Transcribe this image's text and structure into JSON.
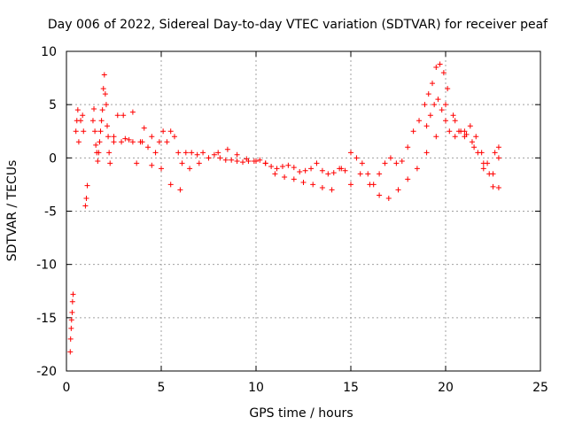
{
  "chart_data": {
    "type": "scatter",
    "title": "Day 006 of 2022, Sidereal Day-to-day VTEC variation (SDTVAR) for receiver peaf",
    "xlabel": "GPS time / hours",
    "ylabel": "SDTVAR / TECUs",
    "xlim": [
      0,
      25
    ],
    "ylim": [
      -20,
      10
    ],
    "xticks": [
      "0",
      "5",
      "10",
      "15",
      "20",
      "25"
    ],
    "yticks": [
      "-20",
      "-15",
      "-10",
      "-5",
      "0",
      "5",
      "10"
    ],
    "grid": true,
    "marker": "+",
    "color": "#ff0000",
    "series": [
      {
        "name": "SDTVAR",
        "x": [
          0.2,
          0.22,
          0.25,
          0.27,
          0.3,
          0.32,
          0.35,
          0.5,
          0.55,
          0.6,
          0.65,
          0.75,
          0.85,
          0.9,
          1.0,
          1.05,
          1.1,
          1.4,
          1.45,
          1.5,
          1.55,
          1.6,
          1.65,
          1.7,
          1.75,
          1.8,
          1.85,
          1.9,
          1.95,
          2.0,
          2.05,
          2.1,
          2.15,
          2.2,
          2.25,
          2.3,
          2.5,
          2.7,
          2.9,
          3.1,
          3.3,
          3.5,
          3.7,
          3.9,
          4.1,
          4.3,
          4.5,
          4.7,
          4.9,
          5.1,
          5.3,
          5.5,
          5.7,
          5.9,
          6.1,
          6.3,
          6.6,
          6.9,
          7.2,
          7.5,
          7.8,
          8.1,
          8.4,
          8.7,
          9.0,
          9.3,
          9.6,
          9.9,
          10.2,
          10.5,
          10.8,
          11.1,
          11.4,
          11.7,
          12.0,
          12.3,
          12.6,
          12.9,
          13.2,
          13.5,
          13.8,
          14.1,
          14.4,
          14.7,
          15.0,
          15.3,
          15.6,
          15.9,
          16.2,
          16.5,
          16.8,
          17.1,
          17.4,
          17.7,
          18.0,
          18.3,
          18.6,
          18.9,
          19.1,
          19.3,
          19.5,
          19.7,
          19.9,
          20.1,
          20.4,
          20.7,
          21.0,
          21.3,
          21.6,
          21.9,
          22.2,
          22.5,
          22.8,
          2.5,
          3.0,
          3.5,
          4.0,
          4.5,
          5.0,
          5.5,
          6.0,
          6.5,
          7.0,
          7.5,
          8.0,
          8.5,
          9.0,
          9.5,
          10.0,
          10.5,
          11.0,
          11.5,
          12.0,
          12.5,
          13.0,
          13.5,
          14.0,
          14.5,
          15.0,
          15.5,
          16.0,
          16.5,
          17.0,
          17.5,
          18.0,
          18.5,
          19.0,
          19.5,
          20.0,
          20.5,
          21.0,
          21.5,
          22.0,
          22.5,
          22.8,
          19.0,
          19.2,
          19.4,
          19.6,
          19.8,
          20.0,
          20.2,
          20.5,
          20.8,
          21.1,
          21.4,
          21.7,
          22.0,
          22.3,
          22.6,
          22.8
        ],
        "y": [
          -18.2,
          -17,
          -16,
          -15.2,
          -14.5,
          -13.5,
          -12.8,
          2.5,
          3.5,
          4.5,
          1.5,
          3.5,
          4,
          2.5,
          -4.5,
          -3.8,
          -2.6,
          3.5,
          4.6,
          2.5,
          1.2,
          0.5,
          -0.3,
          0.5,
          1.5,
          2.5,
          3.5,
          4.5,
          6.5,
          7.8,
          6,
          5,
          3,
          2,
          0.5,
          -0.5,
          1.5,
          4,
          1.5,
          1.8,
          1.7,
          1.5,
          -0.5,
          1.5,
          2.8,
          1,
          -0.7,
          0.5,
          1.5,
          2.5,
          1.5,
          2.5,
          2,
          0.5,
          -0.5,
          0.5,
          0.5,
          0.3,
          0.5,
          0,
          0.3,
          0,
          -0.2,
          -0.2,
          -0.3,
          -0.4,
          -0.3,
          -0.3,
          -0.2,
          -0.5,
          -0.8,
          -1,
          -0.8,
          -0.7,
          -0.9,
          -1.3,
          -1.2,
          -1,
          -0.5,
          -1.2,
          -1.5,
          -1.4,
          -1,
          -1.2,
          0.5,
          0,
          -0.5,
          -1.5,
          -2.5,
          -1.5,
          -0.5,
          0,
          -0.5,
          -0.3,
          1,
          2.5,
          3.5,
          5,
          6,
          7,
          8.5,
          8.8,
          8,
          6.5,
          4,
          2.5,
          2,
          3,
          2,
          0.5,
          -0.5,
          -1.5,
          0,
          2,
          4,
          4.3,
          1.5,
          2,
          -1,
          -2.5,
          -3,
          -1,
          -0.5,
          0,
          0.5,
          0.8,
          0.3,
          -0.1,
          -0.3,
          -0.5,
          -1.5,
          -1.8,
          -2,
          -2.3,
          -2.5,
          -2.8,
          -3,
          -1,
          -2.5,
          -1.5,
          -2.5,
          -3.5,
          -3.8,
          -3,
          -2,
          -1,
          0.5,
          2,
          5,
          3.5,
          2.5,
          1,
          -1,
          -2.7,
          -2.8,
          3,
          4,
          5,
          5.5,
          4.5,
          3.5,
          2.5,
          2,
          2.5,
          2.2,
          1.5,
          0.5,
          -0.5,
          -1.5,
          0.5,
          1
        ]
      }
    ]
  }
}
